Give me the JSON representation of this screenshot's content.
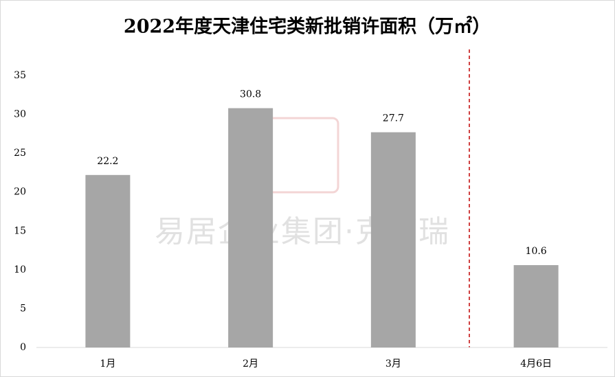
{
  "chart_data": {
    "type": "bar",
    "title": "2022年度天津住宅类新批销许面积（万㎡）",
    "categories": [
      "1月",
      "2月",
      "3月",
      "4月6日"
    ],
    "values": [
      22.2,
      30.8,
      27.7,
      10.6
    ],
    "color": "#a6a6a6",
    "ylim": [
      0,
      35
    ],
    "yticks": [
      0,
      5,
      10,
      15,
      20,
      25,
      30,
      35
    ],
    "grid": false,
    "watermark": "易居企业集团·克而瑞"
  }
}
